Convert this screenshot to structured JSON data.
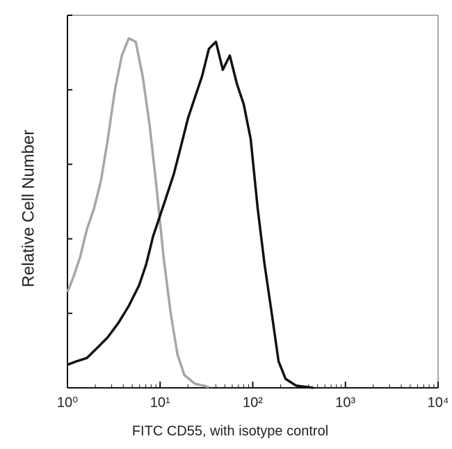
{
  "chart_data": {
    "type": "line",
    "xlabel": "FITC CD55, with isotype control",
    "ylabel": "Relative Cell Number",
    "xscale": "log",
    "xlim": [
      1,
      10000
    ],
    "xticks": [
      {
        "value": 1,
        "label": "10⁰"
      },
      {
        "value": 10,
        "label": "10¹"
      },
      {
        "value": 100,
        "label": "10²"
      },
      {
        "value": 1000,
        "label": "10³"
      },
      {
        "value": 10000,
        "label": "10⁴"
      }
    ],
    "ylim": [
      0,
      100
    ],
    "yticks": [
      0,
      20,
      40,
      60,
      80,
      100
    ],
    "series": [
      {
        "color": "#a6a6a6",
        "x": [
          1,
          1.15,
          1.37,
          1.62,
          1.93,
          2.3,
          2.73,
          3.25,
          3.86,
          4.59,
          5.46,
          6.49,
          7.71,
          9.17,
          10.9,
          13.0,
          15.4,
          18.3,
          23.8,
          33.6
        ],
        "values": [
          25.7,
          29.5,
          35.1,
          42.5,
          48.1,
          55.6,
          66.8,
          79.9,
          89.2,
          93.8,
          92.9,
          83.6,
          70.5,
          53.7,
          35.1,
          20.1,
          9.0,
          3.4,
          1.1,
          0.2
        ]
      },
      {
        "color": "#111111",
        "x": [
          1,
          1.25,
          1.62,
          2.11,
          2.73,
          3.54,
          4.59,
          5.95,
          7.08,
          8.41,
          10.0,
          11.9,
          14.1,
          16.8,
          20.0,
          23.8,
          28.3,
          33.6,
          40.0,
          47.5,
          56.5,
          67.2,
          79.9,
          94.9,
          113,
          134,
          160,
          190,
          226,
          293,
          451
        ],
        "values": [
          6.2,
          7.1,
          8.0,
          10.8,
          13.6,
          17.4,
          22.0,
          27.6,
          33.2,
          40.7,
          46.3,
          51.9,
          57.5,
          64.9,
          72.4,
          78.0,
          83.6,
          91.0,
          92.9,
          85.4,
          89.2,
          81.7,
          76.1,
          66.8,
          48.1,
          33.2,
          20.1,
          7.1,
          2.4,
          0.6,
          0
        ]
      }
    ]
  }
}
